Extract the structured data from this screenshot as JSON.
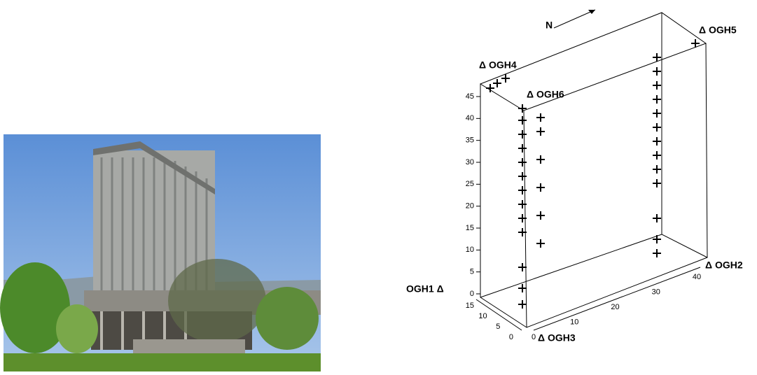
{
  "diagram": {
    "north_label": "N",
    "station_labels": {
      "ogh1": "OGH1 Δ",
      "ogh2": "Δ OGH2",
      "ogh3": "Δ OGH3",
      "ogh4": "Δ OGH4",
      "ogh5": "Δ OGH5",
      "ogh6": "Δ OGH6"
    },
    "vertical_axis_ticks": [
      0,
      5,
      10,
      15,
      20,
      25,
      30,
      35,
      40,
      45
    ],
    "depth_axis_ticks": [
      0,
      5,
      10,
      15
    ],
    "horizontal_axis_ticks": [
      0,
      10,
      20,
      30,
      40
    ]
  }
}
